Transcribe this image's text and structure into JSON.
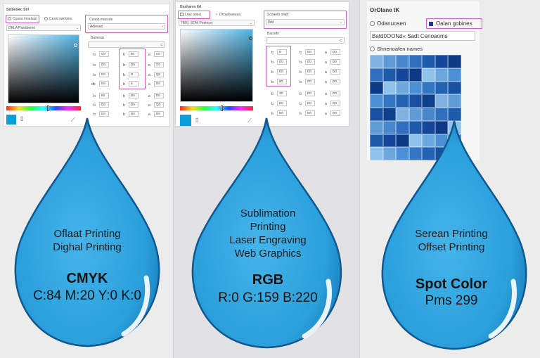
{
  "cmyk_panel": {
    "title": "Selbetorc Stil",
    "mode_option": "Cxaou moaisan",
    "alt_option": "Cexal swdoieo",
    "dropdown_value": "DKLA Pasdbemo",
    "right_dropdown_label": "Czaob macsde",
    "right_dropdown_value": "Adieoao",
    "section_label": "Bameais",
    "left_fields": [
      {
        "label": "b",
        "value": "C0"
      },
      {
        "label": "b",
        "value": "D0"
      },
      {
        "label": "b",
        "value": "D0"
      },
      {
        "label": "b",
        "value": "D0"
      },
      {
        "label": "db",
        "value": "D0"
      },
      {
        "label": "b",
        "value": "80"
      },
      {
        "label": "b",
        "value": "D0"
      },
      {
        "label": "b",
        "value": "D0"
      }
    ],
    "mid_fields": [
      {
        "label": "b",
        "value": "80"
      },
      {
        "label": "b",
        "value": "D0"
      },
      {
        "label": "b",
        "value": "D"
      },
      {
        "label": "b",
        "value": "d"
      },
      {
        "label": "b",
        "value": "B"
      },
      {
        "label": "b",
        "value": "D0"
      },
      {
        "label": "b",
        "value": "D0"
      },
      {
        "label": "b",
        "value": "D0"
      }
    ],
    "right_fields": [
      {
        "label": "a",
        "value": "C0"
      },
      {
        "label": "a",
        "value": "G0"
      },
      {
        "label": "a",
        "value": "Q0"
      },
      {
        "label": "a",
        "value": "D0"
      },
      {
        "label": "a",
        "value": "D0"
      },
      {
        "label": "a",
        "value": "D0"
      },
      {
        "label": "a",
        "value": "Q0"
      },
      {
        "label": "a",
        "value": "D0"
      }
    ]
  },
  "rgb_panel": {
    "title": "Deshares Itd",
    "mode_option": "Lrax aoaiu",
    "alt_option": "Drcadoaeuaa",
    "dropdown_value": "7800, SDM Peaticos",
    "right_dropdown_label": "Scoaiea ofian",
    "right_dropdown_value": "8dd",
    "section_label": "Bacodo",
    "left_fields": [
      {
        "label": "b",
        "value": "D"
      },
      {
        "label": "b",
        "value": "D0"
      },
      {
        "label": "b",
        "value": "D0"
      },
      {
        "label": "b",
        "value": "80"
      },
      {
        "label": "b",
        "value": "S0"
      },
      {
        "label": "b",
        "value": "D0"
      },
      {
        "label": "b",
        "value": "D0"
      }
    ],
    "mid_fields": [
      {
        "label": "b",
        "value": "D0"
      },
      {
        "label": "b",
        "value": "D0"
      },
      {
        "label": "b",
        "value": "D0"
      },
      {
        "label": "b",
        "value": "D0"
      },
      {
        "label": "b",
        "value": "D0"
      },
      {
        "label": "b",
        "value": "D0"
      },
      {
        "label": "b",
        "value": "D0"
      }
    ],
    "right_fields": [
      {
        "label": "a",
        "value": "D0"
      },
      {
        "label": "a",
        "value": "D0"
      },
      {
        "label": "a",
        "value": "D0"
      },
      {
        "label": "a",
        "value": "D0"
      },
      {
        "label": "a",
        "value": "D0"
      },
      {
        "label": "a",
        "value": "D0"
      },
      {
        "label": "a",
        "value": "D0"
      }
    ]
  },
  "pms_panel": {
    "title": "OrOlane tK",
    "radio_colorbook": "Odanuosen",
    "radio_library": "Oalan gobines",
    "library_value": "Batd0OONd« Sadt Cenoaoms",
    "radio_show": "Shnenoafen names"
  },
  "drops": {
    "cmyk": {
      "uses": [
        "Oflaat Printing",
        "Dighal Printing"
      ],
      "mode": "CMYK",
      "values": "C:84 M:20 Y:0 K:0"
    },
    "rgb": {
      "uses": [
        "Sublimation",
        "Printing",
        "Laser Engraving",
        "Web Graphics"
      ],
      "mode": "RGB",
      "values": "R:0 G:159 B:220"
    },
    "spot": {
      "uses": [
        "Serean Printing",
        "Offset Printing"
      ],
      "mode": "Spot Color",
      "values": "Pms 299"
    }
  },
  "colors": {
    "drop_fill": "#2a9fdc",
    "drop_edge": "#10588f",
    "swatch": "#0a9fdc",
    "highlight": "#d45bd0"
  }
}
